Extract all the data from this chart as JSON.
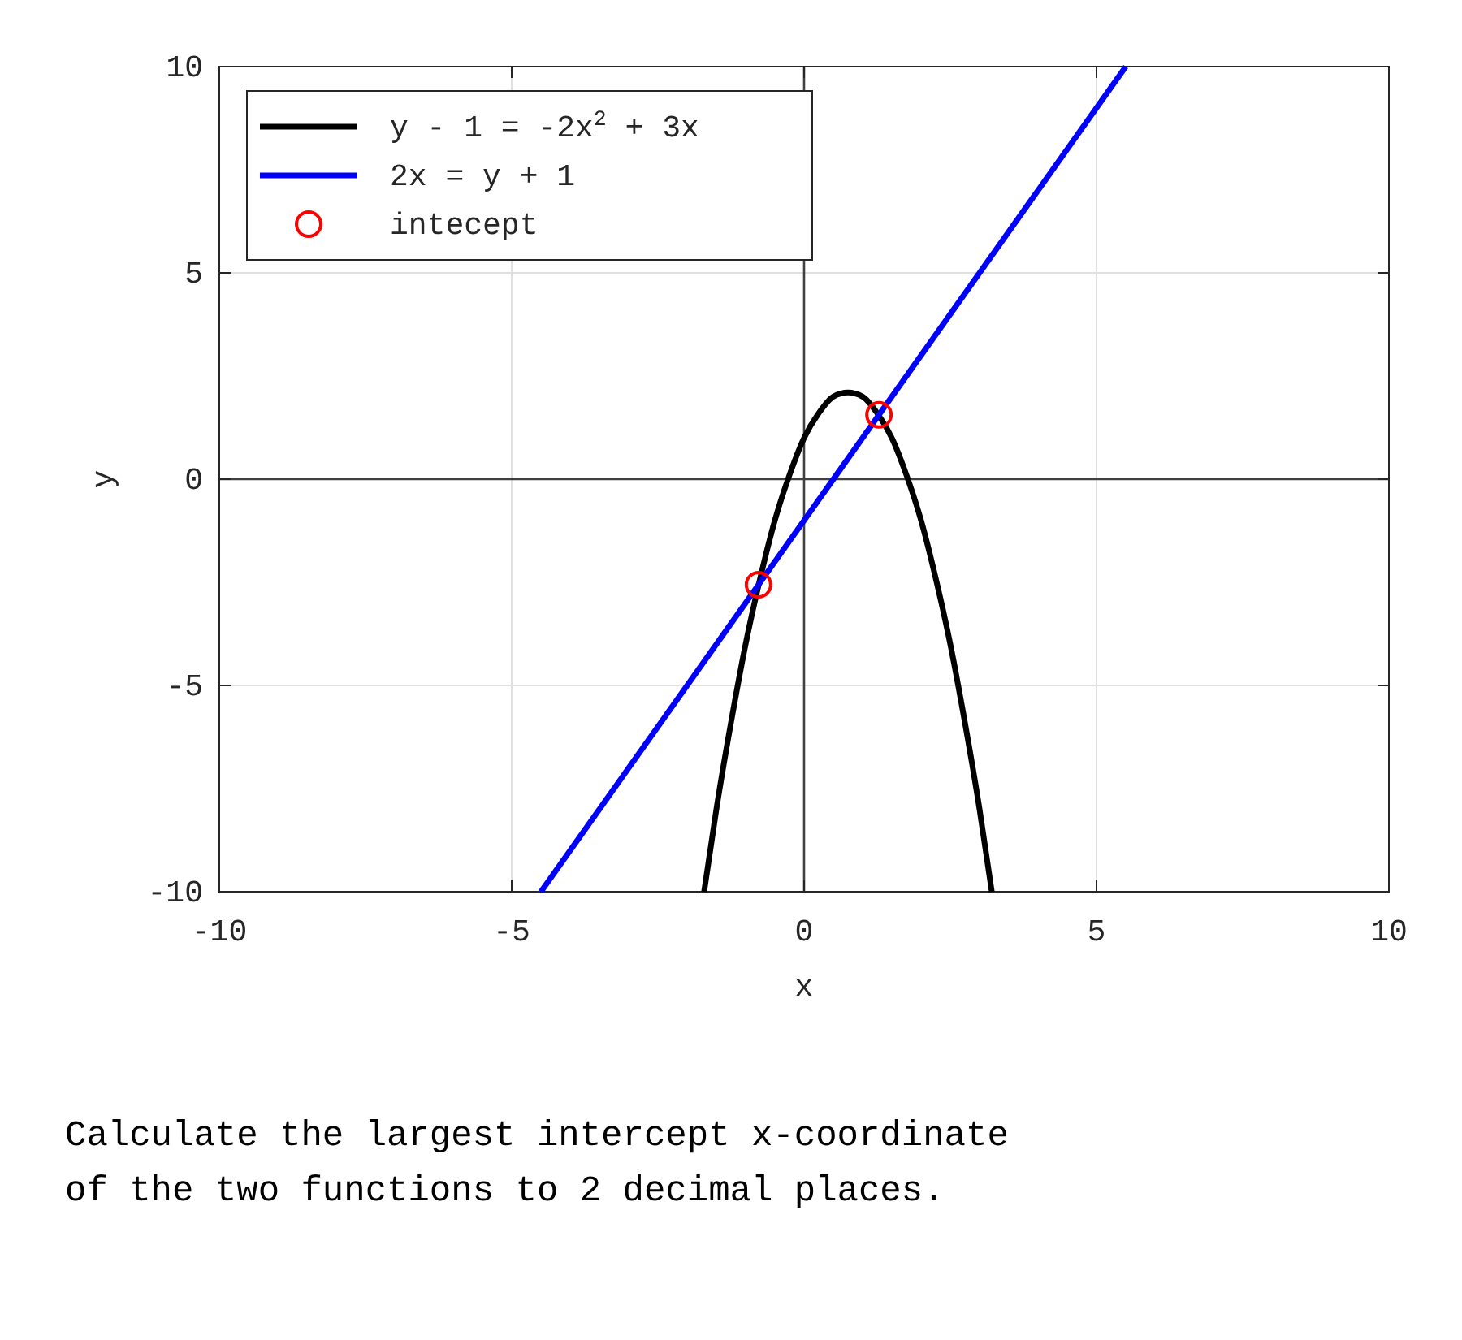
{
  "chart_data": {
    "type": "line",
    "xlabel": "x",
    "ylabel": "y",
    "xlim": [
      -10,
      10
    ],
    "ylim": [
      -10,
      10
    ],
    "xticks": [
      -10,
      -5,
      0,
      5,
      10
    ],
    "yticks": [
      -10,
      -5,
      0,
      5,
      10
    ],
    "grid": true,
    "legend": "top left",
    "series": [
      {
        "name": "y - 1 = -2x$^{2}$ + 3x",
        "color": "#000000",
        "x": [
          -1.71,
          -1.5,
          -1.25,
          -1,
          -0.75,
          -0.5,
          -0.25,
          0,
          0.25,
          0.5,
          0.75,
          1,
          1.25,
          1.5,
          1.75,
          2,
          2.25,
          2.5,
          2.75,
          3,
          3.21
        ],
        "values": [
          -10,
          -8,
          -5.9,
          -4,
          -2.4,
          -1,
          0.1,
          1,
          1.6,
          2,
          2.1,
          2,
          1.6,
          1,
          0.1,
          -1,
          -2.4,
          -4,
          -5.9,
          -8,
          -10
        ]
      },
      {
        "name": "2x = y + 1",
        "color": "#0000ff",
        "x": [
          -4.5,
          5.5
        ],
        "values": [
          -10,
          10
        ]
      },
      {
        "name": "intecept",
        "color": "#ff0000",
        "type": "scatter",
        "marker": "circle",
        "x": [
          -0.78,
          1.28
        ],
        "values": [
          -2.56,
          1.56
        ]
      }
    ],
    "annotations": [
      "Calculate the largest intercept x-coordinate of the two functions to 2 decimal places."
    ]
  }
}
